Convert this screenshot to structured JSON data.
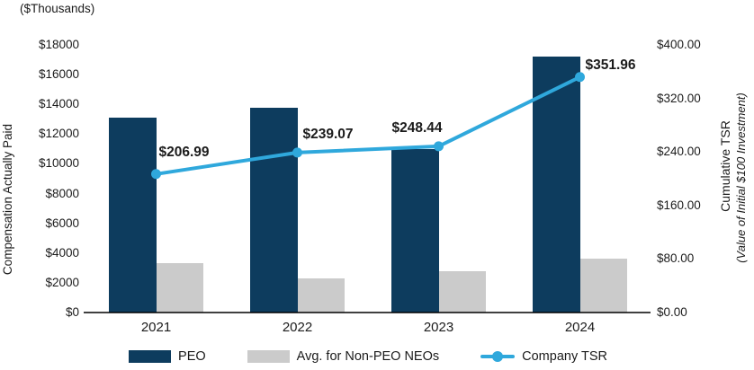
{
  "chart_data": {
    "type": "combo-bar-line",
    "title": "",
    "categories": [
      "2021",
      "2022",
      "2023",
      "2024"
    ],
    "series": [
      {
        "name": "PEO",
        "type": "bar",
        "axis": "left",
        "color": "#0d3c5e",
        "values": [
          13100,
          13800,
          11000,
          17200
        ]
      },
      {
        "name": "Avg. for Non-PEO NEOs",
        "type": "bar",
        "axis": "left",
        "color": "#cbcbcb",
        "values": [
          3300,
          2300,
          2800,
          3600
        ]
      },
      {
        "name": "Company TSR",
        "type": "line",
        "axis": "right",
        "color": "#2fa8dc",
        "values": [
          206.99,
          239.07,
          248.44,
          351.96
        ],
        "point_labels": [
          "$206.99",
          "$239.07",
          "$248.44",
          "$351.96"
        ]
      }
    ],
    "left_axis": {
      "title": "Compensation Actually Paid",
      "units_label": "($Thousands)",
      "min": 0,
      "max": 18000,
      "tick_step": 2000,
      "tick_labels": [
        "$0",
        "$2000",
        "$4000",
        "$6000",
        "$8000",
        "$10000",
        "$12000",
        "$14000",
        "$16000",
        "$18000"
      ]
    },
    "right_axis": {
      "title": "Cumulative TSR",
      "subtitle": "(Value of Initial $100 Investment)",
      "min": 0,
      "max": 400,
      "tick_step": 80,
      "tick_labels": [
        "$0.00",
        "$80.00",
        "$160.00",
        "$240.00",
        "$320.00",
        "$400.00"
      ]
    },
    "legend": [
      {
        "label": "PEO",
        "swatch": "bar",
        "color": "#0d3c5e"
      },
      {
        "label": "Avg. for Non-PEO NEOs",
        "swatch": "bar",
        "color": "#cbcbcb"
      },
      {
        "label": "Company TSR",
        "swatch": "line-dot",
        "color": "#2fa8dc"
      }
    ],
    "grid": false,
    "legend_position": "bottom",
    "axis_line_color": "#000000"
  }
}
